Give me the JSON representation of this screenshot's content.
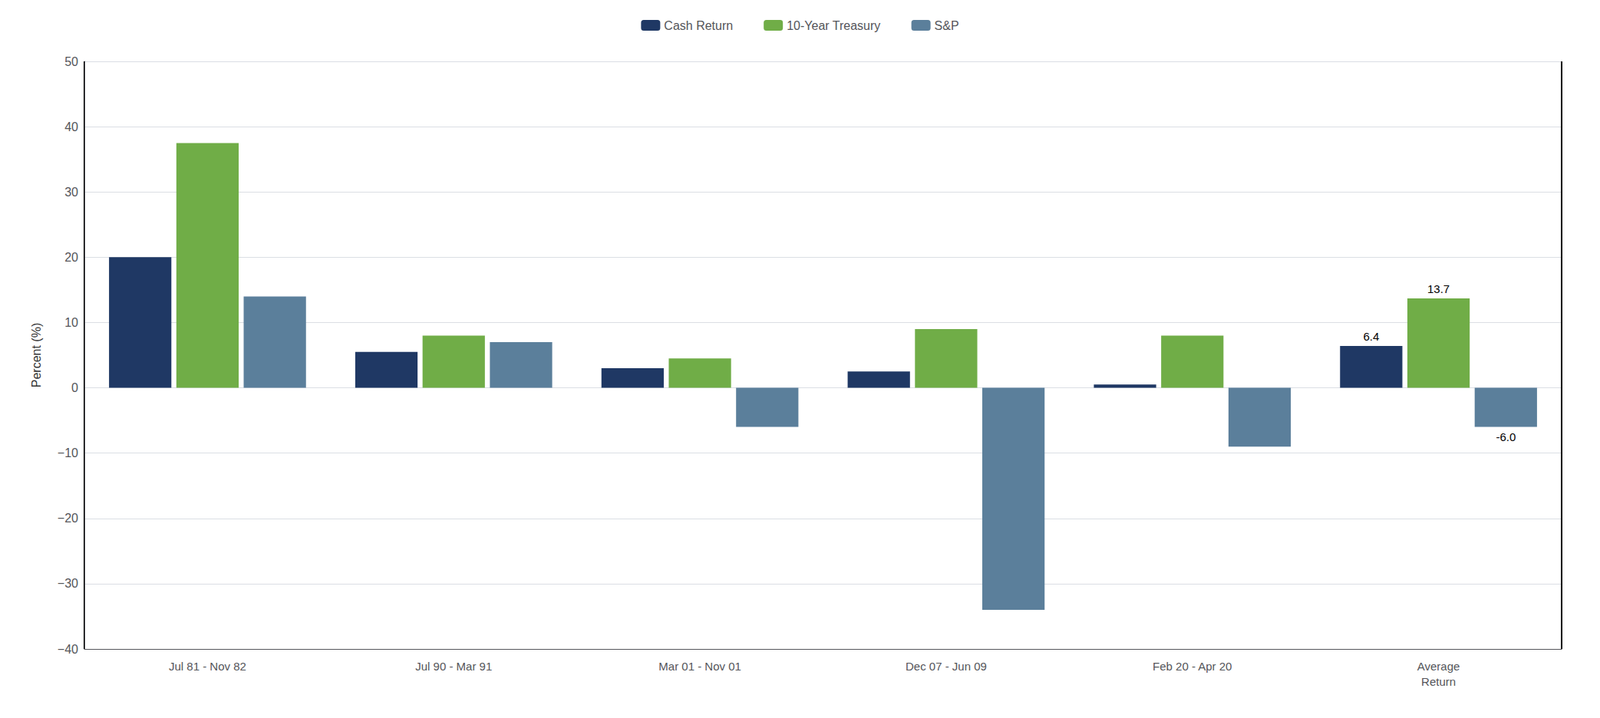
{
  "chart_data": {
    "type": "bar",
    "categories": [
      "Jul 81 - Nov 82",
      "Jul 90 - Mar 91",
      "Mar 01 - Nov 01",
      "Dec 07 - Jun 09",
      "Feb 20 - Apr 20",
      "Average\nReturn"
    ],
    "series": [
      {
        "name": "Cash Return",
        "color": "#1f3864",
        "values": [
          20.0,
          5.5,
          3.0,
          2.5,
          0.5,
          6.4
        ],
        "value_labels": [
          null,
          null,
          null,
          null,
          null,
          "6.4"
        ]
      },
      {
        "name": "10-Year Treasury",
        "color": "#70ad47",
        "values": [
          37.5,
          8.0,
          4.5,
          9.0,
          8.0,
          13.7
        ],
        "value_labels": [
          null,
          null,
          null,
          null,
          null,
          "13.7"
        ]
      },
      {
        "name": "S&P",
        "color": "#5b7f9b",
        "values": [
          14.0,
          7.0,
          -6.0,
          -34.0,
          -9.0,
          -6.0
        ],
        "value_labels": [
          null,
          null,
          null,
          null,
          null,
          "-6.0"
        ]
      }
    ],
    "ylabel": "Percent (%)",
    "ylim": [
      -40,
      50
    ],
    "yticks": [
      {
        "value": -40,
        "label": "−40"
      },
      {
        "value": -30,
        "label": "−30"
      },
      {
        "value": -20,
        "label": "−20"
      },
      {
        "value": -10,
        "label": "−10"
      },
      0,
      10,
      20,
      30,
      40,
      50
    ],
    "grid": true,
    "legend": "top"
  }
}
